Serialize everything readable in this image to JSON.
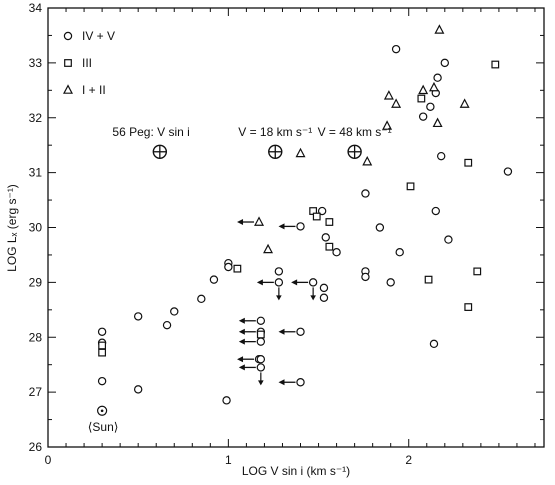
{
  "chart_data": {
    "type": "scatter",
    "xlabel": "LOG V sin i (km s⁻¹)",
    "ylabel": "LOG Lₓ (erg s⁻¹)",
    "xlim": [
      0,
      2.75
    ],
    "ylim": [
      26,
      34
    ],
    "x_ticks": [
      0,
      1,
      2
    ],
    "y_ticks": [
      26,
      27,
      28,
      29,
      30,
      31,
      32,
      33,
      34
    ],
    "grid": false,
    "legend_position": "top-left",
    "legend": [
      {
        "label": "IV + V",
        "marker": "circle"
      },
      {
        "label": "III",
        "marker": "square"
      },
      {
        "label": "I + II",
        "marker": "triangle"
      }
    ],
    "series": [
      {
        "name": "IV + V",
        "marker": "circle",
        "points": [
          [
            0.3,
            28.1
          ],
          [
            0.3,
            27.9
          ],
          [
            0.3,
            27.2
          ],
          [
            0.5,
            28.38
          ],
          [
            0.5,
            27.05
          ],
          [
            0.66,
            28.22
          ],
          [
            0.7,
            28.47
          ],
          [
            0.85,
            28.7
          ],
          [
            0.92,
            29.05
          ],
          [
            1.0,
            29.35
          ],
          [
            1.0,
            29.28
          ],
          [
            0.99,
            26.85
          ],
          [
            1.18,
            28.3
          ],
          [
            1.18,
            28.1
          ],
          [
            1.18,
            27.92
          ],
          [
            1.17,
            27.6
          ],
          [
            1.18,
            27.6
          ],
          [
            1.18,
            27.45
          ],
          [
            1.28,
            29.2
          ],
          [
            1.28,
            29.0
          ],
          [
            1.4,
            30.02
          ],
          [
            1.4,
            28.1
          ],
          [
            1.4,
            27.18
          ],
          [
            1.47,
            29.0
          ],
          [
            1.52,
            30.3
          ],
          [
            1.54,
            29.82
          ],
          [
            1.53,
            28.9
          ],
          [
            1.53,
            28.72
          ],
          [
            1.6,
            29.55
          ],
          [
            1.76,
            30.62
          ],
          [
            1.76,
            29.2
          ],
          [
            1.76,
            29.1
          ],
          [
            1.84,
            30.0
          ],
          [
            1.9,
            29.0
          ],
          [
            1.93,
            33.25
          ],
          [
            1.95,
            29.55
          ],
          [
            2.08,
            32.02
          ],
          [
            2.12,
            32.2
          ],
          [
            2.15,
            32.45
          ],
          [
            2.16,
            32.73
          ],
          [
            2.2,
            33.0
          ],
          [
            2.18,
            31.3
          ],
          [
            2.15,
            30.3
          ],
          [
            2.22,
            29.78
          ],
          [
            2.14,
            27.88
          ],
          [
            2.55,
            31.02
          ]
        ]
      },
      {
        "name": "III",
        "marker": "square",
        "points": [
          [
            0.3,
            27.85
          ],
          [
            0.3,
            27.72
          ],
          [
            1.05,
            29.25
          ],
          [
            1.18,
            28.05
          ],
          [
            1.47,
            30.3
          ],
          [
            1.49,
            30.2
          ],
          [
            1.56,
            30.1
          ],
          [
            1.56,
            29.65
          ],
          [
            2.01,
            30.75
          ],
          [
            2.07,
            32.35
          ],
          [
            2.11,
            29.05
          ],
          [
            2.33,
            31.18
          ],
          [
            2.33,
            28.55
          ],
          [
            2.38,
            29.2
          ],
          [
            2.48,
            32.97
          ]
        ]
      },
      {
        "name": "I + II",
        "marker": "triangle",
        "points": [
          [
            1.17,
            30.1
          ],
          [
            1.22,
            29.6
          ],
          [
            1.4,
            31.35
          ],
          [
            1.77,
            31.2
          ],
          [
            1.88,
            31.85
          ],
          [
            1.89,
            32.4
          ],
          [
            1.93,
            32.25
          ],
          [
            2.08,
            32.5
          ],
          [
            2.14,
            32.55
          ],
          [
            2.16,
            31.9
          ],
          [
            2.17,
            33.6
          ],
          [
            2.31,
            32.25
          ]
        ]
      }
    ],
    "upper_limits": [
      [
        1.18,
        28.3
      ],
      [
        1.18,
        28.1
      ],
      [
        1.18,
        27.92
      ],
      [
        1.17,
        27.6
      ],
      [
        1.18,
        27.45
      ],
      [
        1.17,
        30.1
      ],
      [
        1.28,
        29.0
      ],
      [
        1.4,
        30.02
      ],
      [
        1.4,
        28.1
      ],
      [
        1.4,
        27.18
      ],
      [
        1.47,
        29.0
      ]
    ],
    "down_arrows": [
      [
        1.18,
        27.45
      ],
      [
        1.28,
        29.0
      ],
      [
        1.47,
        29.0
      ]
    ],
    "sun": {
      "point": [
        0.3,
        26.66
      ],
      "label": "⟨Sun⟩"
    },
    "peg_points": [
      {
        "x": 0.62,
        "y": 31.38,
        "label": "56 Peg: V sin i"
      },
      {
        "x": 1.26,
        "y": 31.38,
        "label": "V = 18 km s⁻¹"
      },
      {
        "x": 1.7,
        "y": 31.38,
        "label": "V = 48 km s⁻¹"
      }
    ]
  }
}
